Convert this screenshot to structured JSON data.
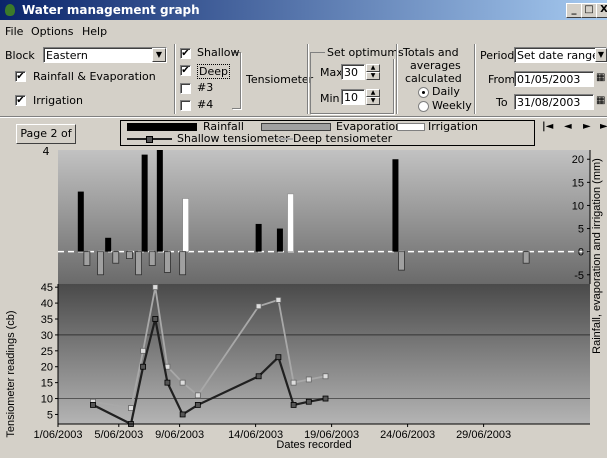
{
  "window": {
    "title": "Water management graph",
    "min_glyph": "_",
    "max_glyph": "□",
    "close_glyph": "X"
  },
  "menu": [
    "File",
    "Options",
    "Help"
  ],
  "controls": {
    "block_label": "Block",
    "block_value": "Eastern",
    "rainfall_evap_label": "Rainfall & Evaporation",
    "rainfall_evap_checked": true,
    "irrigation_label": "Irrigation",
    "irrigation_checked": true,
    "tensiometer_label": "Tensiometer",
    "sensors": [
      {
        "label": "Shallow",
        "checked": true
      },
      {
        "label": "Deep",
        "checked": true
      },
      {
        "label": "#3",
        "checked": false
      },
      {
        "label": "#4",
        "checked": false
      }
    ],
    "optimums_title": "Set optimums",
    "max_label": "Max",
    "max_value": "30",
    "min_label": "Min",
    "min_value": "10",
    "totals_title_1": "Totals and",
    "totals_title_2": "averages",
    "totals_title_3": "calculated",
    "daily_label": "Daily",
    "weekly_label": "Weekly",
    "selected_total": "Daily",
    "period_label": "Period",
    "period_value": "Set date range",
    "from_label": "From",
    "from_value": "01/05/2003",
    "to_label": "To",
    "to_value": "31/08/2003"
  },
  "pager": {
    "page_label": "Page 2 of 4",
    "nav": [
      "|◄",
      "◄",
      "►",
      "►|"
    ]
  },
  "colors": {
    "rainfall": "#000000",
    "evaporation": "#a0a0a0",
    "irrigation": "#ffffff",
    "shallow": "#202020",
    "deep": "#a8a8a8"
  },
  "chart_data": {
    "type": "bar+line",
    "legend": [
      "Rainfall",
      "Evaporation",
      "Irrigation",
      "Shallow tensiometer",
      "Deep tensiometer"
    ],
    "xlabel": "Dates recorded",
    "ylabel_left": "Tensiometer readings (cb)",
    "ylabel_right": "Rainfall, evaporation and irrigation (mm)",
    "x_tick_labels": [
      "1/06/2003",
      "5/06/2003",
      "9/06/2003",
      "14/06/2003",
      "19/06/2003",
      "24/06/2003",
      "29/06/2003"
    ],
    "x_tick_days": [
      1,
      5,
      9,
      14,
      19,
      24,
      29
    ],
    "xlim_days": [
      1,
      36
    ],
    "top_ylim": [
      -7,
      22
    ],
    "top_ticks": [
      -5,
      0,
      5,
      10,
      15,
      20
    ],
    "bottom_ylim": [
      2,
      46
    ],
    "bottom_ticks": [
      5,
      10,
      15,
      20,
      25,
      30,
      35,
      40,
      45
    ],
    "optimum_max": 30,
    "optimum_min": 10,
    "rainfall": [
      {
        "day": 2.5,
        "value": 13
      },
      {
        "day": 4.3,
        "value": 3
      },
      {
        "day": 6.7,
        "value": 21
      },
      {
        "day": 7.7,
        "value": 23
      },
      {
        "day": 14.2,
        "value": 6
      },
      {
        "day": 15.6,
        "value": 5
      },
      {
        "day": 23.2,
        "value": 20
      }
    ],
    "evaporation": [
      {
        "day": 2.9,
        "value": -3
      },
      {
        "day": 3.8,
        "value": -5
      },
      {
        "day": 4.8,
        "value": -2.5
      },
      {
        "day": 5.7,
        "value": -1.5
      },
      {
        "day": 6.3,
        "value": -5
      },
      {
        "day": 7.2,
        "value": -3
      },
      {
        "day": 8.2,
        "value": -4.5
      },
      {
        "day": 9.2,
        "value": -5
      },
      {
        "day": 23.6,
        "value": -4
      },
      {
        "day": 31.8,
        "value": -2.5
      }
    ],
    "irrigation": [
      {
        "day": 9.4,
        "value": 11.5
      },
      {
        "day": 16.3,
        "value": 12.5
      }
    ],
    "series": [
      {
        "name": "Shallow tensiometer",
        "x": [
          3.3,
          5.8,
          6.6,
          7.4,
          8.2,
          9.2,
          10.2,
          14.2,
          15.5,
          16.5,
          17.5,
          18.6
        ],
        "y": [
          8,
          2,
          20,
          35,
          15,
          5,
          8,
          17,
          23,
          8,
          9,
          10
        ]
      },
      {
        "name": "Deep tensiometer",
        "x": [
          3.3,
          5.8,
          6.6,
          7.4,
          8.2,
          9.2,
          10.2,
          14.2,
          15.5,
          16.5,
          17.5,
          18.6
        ],
        "y": [
          9,
          7,
          25,
          45,
          20,
          15,
          11,
          39,
          41,
          15,
          16,
          17
        ]
      }
    ]
  }
}
